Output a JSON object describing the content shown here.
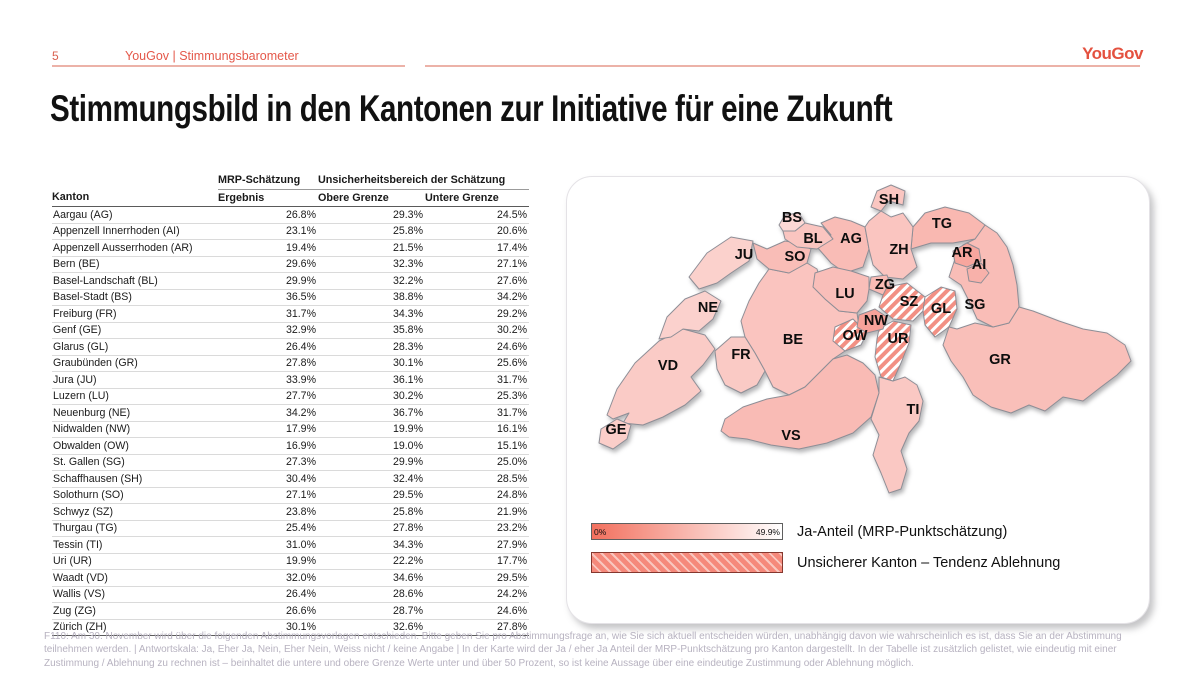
{
  "page": {
    "number": "5",
    "header": "YouGov | Stimmungsbarometer",
    "logo": "YouGov",
    "title": "Stimmungsbild in den Kantonen zur Initiative für eine Zukunft",
    "footnote": "F110: Am 30. November wird über die folgenden Abstimmungsvorlagen entschieden. Bitte geben Sie pro Abstimmungsfrage an, wie Sie sich aktuell entscheiden würden, unabhängig davon wie wahrscheinlich es ist, dass Sie an der Abstimmung teilnehmen werden. | Antwortskala: Ja, Eher Ja, Nein, Eher Nein, Weiss nicht / keine Angabe | In der Karte wird der Ja / eher Ja Anteil der MRP-Punktschätzung pro Kanton dargestellt. In der Tabelle ist zusätzlich gelistet, wie eindeutig mit einer Zustimmung / Ablehnung zu rechnen ist – beinhaltet die untere und obere Grenze Werte unter und über 50 Prozent, so ist keine Aussage über eine eindeutige Zustimmung oder Ablehnung möglich."
  },
  "colors": {
    "accent_red": "#e4513f",
    "header_underline": "#ecb2a8",
    "map_scale_low": "#f2705e",
    "map_scale_high": "#ffffff",
    "map_border": "#8e8e96",
    "hatch_stripe": "#f5897b",
    "footnote_text": "#b7b2c0"
  },
  "table": {
    "group_headers": [
      "MRP-Schätzung",
      "Unsicherheitsbereich der Schätzung"
    ],
    "columns": [
      "Kanton",
      "Ergebnis",
      "Obere Grenze",
      "Untere Grenze"
    ]
  },
  "legend": {
    "gradient": {
      "min": "0%",
      "max": "49.9%",
      "label": "Ja-Anteil (MRP-Punktschätzung)"
    },
    "hatch": {
      "label": "Unsicherer Kanton – Tendenz Ablehnung"
    }
  },
  "chart_data": {
    "type": "choropleth-map-with-table",
    "title": "Stimmungsbild in den Kantonen zur Initiative für eine Zukunft",
    "region": "Switzerland cantons",
    "value_label": "Ja-Anteil (MRP-Punktschätzung)",
    "scale": {
      "min_pct": 0,
      "max_pct": 49.9,
      "low_color": "#f2705e",
      "high_color": "#ffffff"
    },
    "hatched_meaning": "Unsicherer Kanton – Tendenz Ablehnung",
    "columns": [
      "Kanton",
      "Ergebnis",
      "Obere Grenze",
      "Untere Grenze"
    ],
    "rows": [
      {
        "canton": "Aargau",
        "code": "AG",
        "ergebnis": 26.8,
        "obere": 29.3,
        "untere": 24.5,
        "hatched": false
      },
      {
        "canton": "Appenzell Innerrhoden",
        "code": "AI",
        "ergebnis": 23.1,
        "obere": 25.8,
        "untere": 20.6,
        "hatched": false
      },
      {
        "canton": "Appenzell Ausserrhoden",
        "code": "AR",
        "ergebnis": 19.4,
        "obere": 21.5,
        "untere": 17.4,
        "hatched": false
      },
      {
        "canton": "Bern",
        "code": "BE",
        "ergebnis": 29.6,
        "obere": 32.3,
        "untere": 27.1,
        "hatched": false
      },
      {
        "canton": "Basel-Landschaft",
        "code": "BL",
        "ergebnis": 29.9,
        "obere": 32.2,
        "untere": 27.6,
        "hatched": false
      },
      {
        "canton": "Basel-Stadt",
        "code": "BS",
        "ergebnis": 36.5,
        "obere": 38.8,
        "untere": 34.2,
        "hatched": false
      },
      {
        "canton": "Freiburg",
        "code": "FR",
        "ergebnis": 31.7,
        "obere": 34.3,
        "untere": 29.2,
        "hatched": false
      },
      {
        "canton": "Genf",
        "code": "GE",
        "ergebnis": 32.9,
        "obere": 35.8,
        "untere": 30.2,
        "hatched": false
      },
      {
        "canton": "Glarus",
        "code": "GL",
        "ergebnis": 26.4,
        "obere": 28.3,
        "untere": 24.6,
        "hatched": true
      },
      {
        "canton": "Graubünden",
        "code": "GR",
        "ergebnis": 27.8,
        "obere": 30.1,
        "untere": 25.6,
        "hatched": false
      },
      {
        "canton": "Jura",
        "code": "JU",
        "ergebnis": 33.9,
        "obere": 36.1,
        "untere": 31.7,
        "hatched": false
      },
      {
        "canton": "Luzern",
        "code": "LU",
        "ergebnis": 27.7,
        "obere": 30.2,
        "untere": 25.3,
        "hatched": false
      },
      {
        "canton": "Neuenburg",
        "code": "NE",
        "ergebnis": 34.2,
        "obere": 36.7,
        "untere": 31.7,
        "hatched": false
      },
      {
        "canton": "Nidwalden",
        "code": "NW",
        "ergebnis": 17.9,
        "obere": 19.9,
        "untere": 16.1,
        "hatched": false
      },
      {
        "canton": "Obwalden",
        "code": "OW",
        "ergebnis": 16.9,
        "obere": 19.0,
        "untere": 15.1,
        "hatched": true
      },
      {
        "canton": "St. Gallen",
        "code": "SG",
        "ergebnis": 27.3,
        "obere": 29.9,
        "untere": 25.0,
        "hatched": false
      },
      {
        "canton": "Schaffhausen",
        "code": "SH",
        "ergebnis": 30.4,
        "obere": 32.4,
        "untere": 28.5,
        "hatched": false
      },
      {
        "canton": "Solothurn",
        "code": "SO",
        "ergebnis": 27.1,
        "obere": 29.5,
        "untere": 24.8,
        "hatched": false
      },
      {
        "canton": "Schwyz",
        "code": "SZ",
        "ergebnis": 23.8,
        "obere": 25.8,
        "untere": 21.9,
        "hatched": true
      },
      {
        "canton": "Thurgau",
        "code": "TG",
        "ergebnis": 25.4,
        "obere": 27.8,
        "untere": 23.2,
        "hatched": false
      },
      {
        "canton": "Tessin",
        "code": "TI",
        "ergebnis": 31.0,
        "obere": 34.3,
        "untere": 27.9,
        "hatched": false
      },
      {
        "canton": "Uri",
        "code": "UR",
        "ergebnis": 19.9,
        "obere": 22.2,
        "untere": 17.7,
        "hatched": true
      },
      {
        "canton": "Waadt",
        "code": "VD",
        "ergebnis": 32.0,
        "obere": 34.6,
        "untere": 29.5,
        "hatched": false
      },
      {
        "canton": "Wallis",
        "code": "VS",
        "ergebnis": 26.4,
        "obere": 28.6,
        "untere": 24.2,
        "hatched": false
      },
      {
        "canton": "Zug",
        "code": "ZG",
        "ergebnis": 26.6,
        "obere": 28.7,
        "untere": 24.6,
        "hatched": false
      },
      {
        "canton": "Zürich",
        "code": "ZH",
        "ergebnis": 30.1,
        "obere": 32.6,
        "untere": 27.8,
        "hatched": false
      }
    ]
  }
}
